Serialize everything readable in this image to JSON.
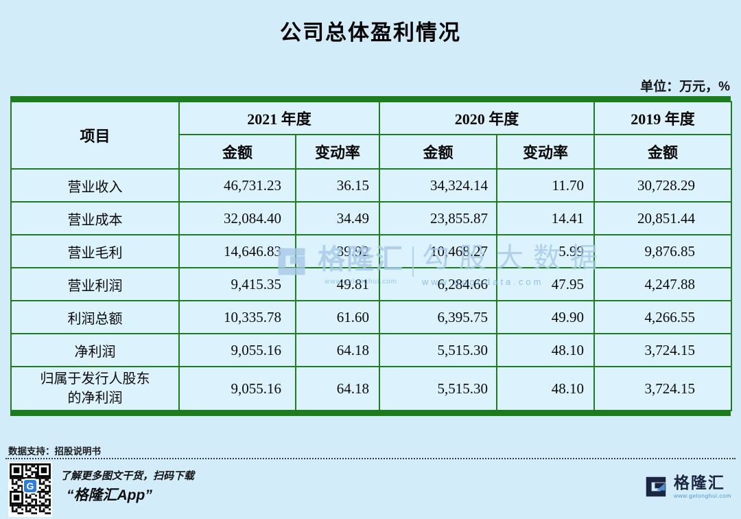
{
  "page": {
    "title": "公司总体盈利情况",
    "unit_label": "单位：万元，%",
    "source_label": "数据支持：招股说明书"
  },
  "chart_data": {
    "type": "table",
    "title": "公司总体盈利情况",
    "unit": "万元，%",
    "item_header": "项目",
    "column_groups": [
      {
        "label": "2021 年度",
        "cols": [
          "金额",
          "变动率"
        ]
      },
      {
        "label": "2020 年度",
        "cols": [
          "金额",
          "变动率"
        ]
      },
      {
        "label": "2019 年度",
        "cols": [
          "金额"
        ]
      }
    ],
    "rows": [
      {
        "item": "营业收入",
        "values": [
          "46,731.23",
          "36.15",
          "34,324.14",
          "11.70",
          "30,728.29"
        ]
      },
      {
        "item": "营业成本",
        "values": [
          "32,084.40",
          "34.49",
          "23,855.87",
          "14.41",
          "20,851.44"
        ]
      },
      {
        "item": "营业毛利",
        "values": [
          "14,646.83",
          "39.92",
          "10,468.27",
          "5.99",
          "9,876.85"
        ]
      },
      {
        "item": "营业利润",
        "values": [
          "9,415.35",
          "49.81",
          "6,284.66",
          "47.95",
          "4,247.88"
        ]
      },
      {
        "item": "利润总额",
        "values": [
          "10,335.78",
          "61.60",
          "6,395.75",
          "49.90",
          "4,266.55"
        ]
      },
      {
        "item": "净利润",
        "values": [
          "9,055.16",
          "64.18",
          "5,515.30",
          "48.10",
          "3,724.15"
        ]
      },
      {
        "item": "归属于发行人股东的净利润",
        "values": [
          "9,055.16",
          "64.18",
          "5,515.30",
          "48.10",
          "3,724.15"
        ]
      }
    ]
  },
  "watermark": {
    "brand": "格隆汇",
    "brand_url": "www.gelonghui.com",
    "product": "勾股大数据",
    "product_url": "www.gogudata.com"
  },
  "footer": {
    "qr_caption_line1": "了解更多图文干货，扫码下载",
    "qr_caption_line2": "“格隆汇App”",
    "qr_center_letter": "G",
    "logo_text": "格隆汇",
    "logo_url": "www.gelonghui.com"
  },
  "colors": {
    "background": "#d3ecfa",
    "table_background": "#dcf2fc",
    "border_green": "#1d7c1d",
    "watermark_blue": "#a6c8e8",
    "logo_navy": "#1b2440",
    "logo_light_blue": "#4a8fd0",
    "qr_blue": "#2a7de1"
  }
}
